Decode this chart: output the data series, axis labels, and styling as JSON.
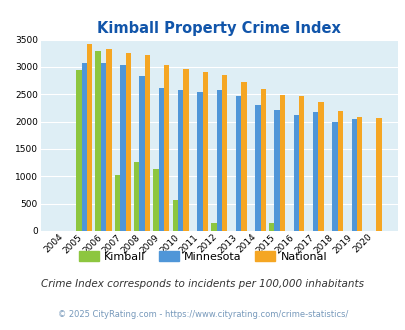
{
  "title": "Kimball Property Crime Index",
  "years": [
    2004,
    2005,
    2006,
    2007,
    2008,
    2009,
    2010,
    2011,
    2012,
    2013,
    2014,
    2015,
    2016,
    2017,
    2018,
    2019,
    2020
  ],
  "kimball": [
    0,
    2950,
    3300,
    1020,
    1270,
    1130,
    570,
    0,
    150,
    0,
    0,
    150,
    0,
    0,
    0,
    0,
    0
  ],
  "minnesota": [
    0,
    3070,
    3070,
    3040,
    2840,
    2620,
    2570,
    2550,
    2570,
    2460,
    2300,
    2220,
    2120,
    2180,
    2000,
    2050,
    0
  ],
  "national": [
    0,
    3420,
    3330,
    3260,
    3210,
    3040,
    2960,
    2900,
    2860,
    2720,
    2590,
    2490,
    2460,
    2350,
    2200,
    2090,
    2070
  ],
  "kimball_color": "#8dc63f",
  "minnesota_color": "#4f96d8",
  "national_color": "#f5a623",
  "bg_color": "#deeef5",
  "title_color": "#1155aa",
  "ylim": [
    0,
    3500
  ],
  "yticks": [
    0,
    500,
    1000,
    1500,
    2000,
    2500,
    3000,
    3500
  ],
  "subtitle": "Crime Index corresponds to incidents per 100,000 inhabitants",
  "footer": "© 2025 CityRating.com - https://www.cityrating.com/crime-statistics/",
  "legend_labels": [
    "Kimball",
    "Minnesota",
    "National"
  ]
}
